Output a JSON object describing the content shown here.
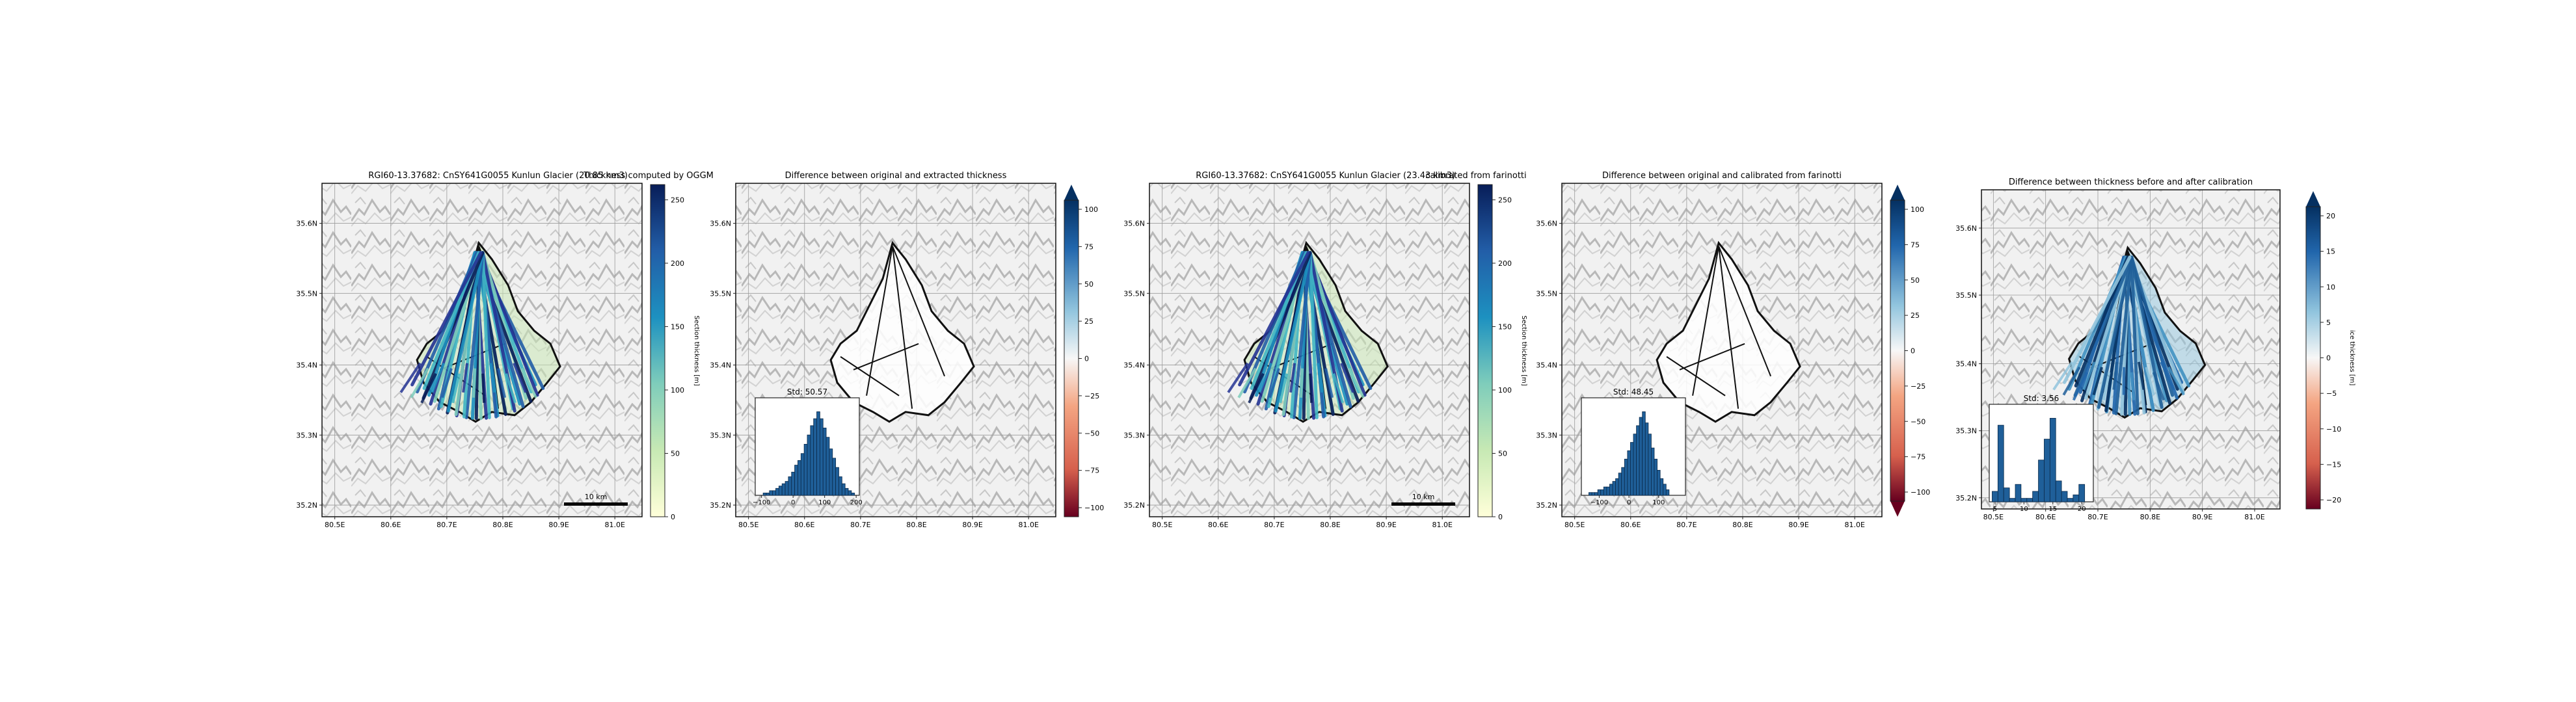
{
  "panels": [
    {
      "kind": "map-thickness",
      "title": "RGI60-13.37682: CnSY641G0055 Kunlun Glacier (20.85 km3)",
      "title2": "Thickness computed by OGGM",
      "x_ticks": [
        "80.5E",
        "80.6E",
        "80.7E",
        "80.8E",
        "80.9E",
        "81.0E"
      ],
      "y_ticks": [
        "35.6N",
        "35.5N",
        "35.4N",
        "35.3N",
        "35.2N"
      ],
      "scalebar": "10 km",
      "cbar": {
        "type": "thickness",
        "ticks": [
          "250",
          "200",
          "150",
          "100",
          "50",
          "0"
        ],
        "label": "Section thickness [m]"
      }
    },
    {
      "kind": "map-diff",
      "title": "Difference between original and extracted thickness",
      "x_ticks": [
        "80.5E",
        "80.6E",
        "80.7E",
        "80.8E",
        "80.9E",
        "81.0E"
      ],
      "y_ticks": [
        "35.6N",
        "35.5N",
        "35.4N",
        "35.3N",
        "35.2N"
      ],
      "cbar": {
        "type": "diverging",
        "ticks": [
          "100",
          "75",
          "50",
          "25",
          "0",
          "−25",
          "−50",
          "−75",
          "−100"
        ],
        "label": "",
        "extend": "top"
      },
      "inset": {
        "title": "Std: 50.57",
        "ticks": [
          "−100",
          "0",
          "100",
          "200"
        ]
      }
    },
    {
      "kind": "map-thickness",
      "title": "RGI60-13.37682: CnSY641G0055 Kunlun Glacier (23.43 km3)",
      "title2": "calibrated from farinotti",
      "x_ticks": [
        "80.5E",
        "80.6E",
        "80.7E",
        "80.8E",
        "80.9E",
        "81.0E"
      ],
      "y_ticks": [
        "35.6N",
        "35.5N",
        "35.4N",
        "35.3N",
        "35.2N"
      ],
      "scalebar": "10 km",
      "cbar": {
        "type": "thickness",
        "ticks": [
          "250",
          "200",
          "150",
          "100",
          "50",
          "0"
        ],
        "label": "Section thickness [m]"
      }
    },
    {
      "kind": "map-diff",
      "title": "Difference between original and calibrated from farinotti",
      "x_ticks": [
        "80.5E",
        "80.6E",
        "80.7E",
        "80.8E",
        "80.9E",
        "81.0E"
      ],
      "y_ticks": [
        "35.6N",
        "35.5N",
        "35.4N",
        "35.3N",
        "35.2N"
      ],
      "cbar": {
        "type": "diverging",
        "ticks": [
          "100",
          "75",
          "50",
          "25",
          "0",
          "−25",
          "−50",
          "−75",
          "−100"
        ],
        "label": "",
        "extend": "both"
      },
      "inset": {
        "title": "Std: 48.45",
        "ticks": [
          "−100",
          "0",
          "100"
        ]
      }
    },
    {
      "kind": "map-diff-small",
      "title": "Difference between thickness before and after calibration",
      "x_ticks": [
        "80.5E",
        "80.6E",
        "80.7E",
        "80.8E",
        "80.9E",
        "81.0E"
      ],
      "y_ticks": [
        "35.6N",
        "35.5N",
        "35.4N",
        "35.3N",
        "35.2N"
      ],
      "cbar": {
        "type": "diverging",
        "ticks": [
          "20",
          "15",
          "10",
          "5",
          "0",
          "−5",
          "−10",
          "−15",
          "−20"
        ],
        "label": "ice thickness [m]",
        "extend": "top"
      },
      "inset": {
        "title": "Std: 3.56",
        "ticks": [
          "5",
          "10",
          "15",
          "20"
        ]
      }
    }
  ],
  "chart_data": [
    {
      "type": "heatmap",
      "title": "RGI60-13.37682: CnSY641G0055 Kunlun Glacier (20.85 km3)",
      "subtitle": "Thickness computed by OGGM",
      "colorbar_label": "Section thickness [m]",
      "colorbar_range": [
        0,
        250
      ],
      "colormap": "YlGnBu",
      "x_ticks": [
        "80.5E",
        "80.6E",
        "80.7E",
        "80.8E",
        "80.9E",
        "81.0E"
      ],
      "y_ticks": [
        "35.6N",
        "35.5N",
        "35.4N",
        "35.3N",
        "35.2N"
      ],
      "scalebar": "10 km"
    },
    {
      "type": "heatmap",
      "title": "Difference between original and extracted thickness",
      "colorbar_range": [
        -100,
        100
      ],
      "colormap": "RdBu",
      "inset": {
        "type": "bar",
        "title": "Std: 50.57",
        "xlim": [
          -120,
          210
        ],
        "x": [
          -90,
          -80,
          -70,
          -60,
          -50,
          -40,
          -30,
          -20,
          -10,
          0,
          10,
          20,
          30,
          40,
          50,
          60,
          70,
          80,
          90,
          100,
          110,
          120,
          130,
          140,
          150,
          160,
          170,
          180,
          190
        ],
        "values": [
          1,
          1,
          2,
          2,
          3,
          4,
          5,
          6,
          8,
          10,
          13,
          15,
          18,
          22,
          26,
          30,
          33,
          36,
          33,
          29,
          25,
          20,
          16,
          12,
          8,
          5,
          3,
          2,
          1
        ]
      }
    },
    {
      "type": "heatmap",
      "title": "RGI60-13.37682: CnSY641G0055 Kunlun Glacier (23.43 km3)",
      "subtitle": "calibrated from farinotti",
      "colorbar_label": "Section thickness [m]",
      "colorbar_range": [
        0,
        250
      ],
      "colormap": "YlGnBu",
      "scalebar": "10 km"
    },
    {
      "type": "heatmap",
      "title": "Difference between original and calibrated from farinotti",
      "colorbar_range": [
        -100,
        100
      ],
      "colormap": "RdBu",
      "inset": {
        "type": "bar",
        "title": "Std: 48.45",
        "xlim": [
          -160,
          190
        ],
        "x": [
          -130,
          -120,
          -110,
          -100,
          -90,
          -80,
          -70,
          -60,
          -50,
          -40,
          -30,
          -20,
          -10,
          0,
          10,
          20,
          30,
          40,
          50,
          60,
          70,
          80,
          90,
          100,
          110,
          120,
          130
        ],
        "values": [
          1,
          1,
          1,
          2,
          2,
          3,
          3,
          4,
          5,
          6,
          8,
          10,
          13,
          16,
          19,
          22,
          25,
          28,
          30,
          26,
          22,
          17,
          13,
          9,
          6,
          4,
          2
        ]
      }
    },
    {
      "type": "heatmap",
      "title": "Difference between thickness before and after calibration",
      "colorbar_label": "ice thickness [m]",
      "colorbar_range": [
        -20,
        20
      ],
      "colormap": "RdBu",
      "inset": {
        "type": "bar",
        "title": "Std: 3.56",
        "xlim": [
          4,
          22
        ],
        "x": [
          5,
          6,
          7,
          8,
          9,
          10,
          11,
          12,
          13,
          14,
          15,
          16,
          17,
          18,
          19,
          20
        ],
        "values": [
          3,
          22,
          4,
          1,
          5,
          1,
          1,
          3,
          12,
          18,
          24,
          6,
          3,
          1,
          2,
          5
        ]
      }
    }
  ]
}
